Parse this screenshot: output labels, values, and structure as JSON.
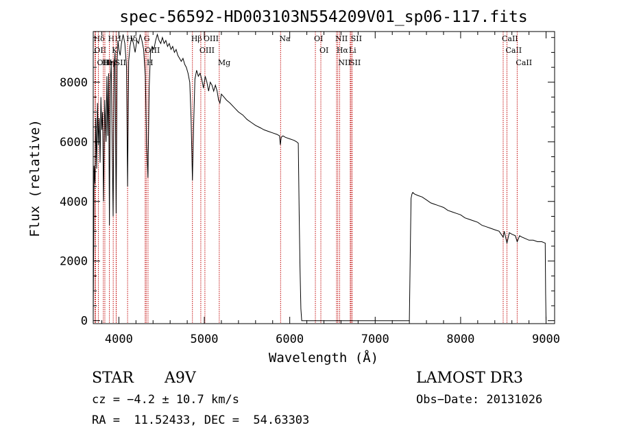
{
  "chart_data": {
    "type": "line",
    "title": "spec-56592-HD003103N554209V01_sp06-117.fits",
    "xlabel": "Wavelength (Å)",
    "ylabel": "Flux (relative)",
    "xlim": [
      3700,
      9100
    ],
    "ylim": [
      -100,
      9700
    ],
    "xticks": [
      4000,
      5000,
      6000,
      7000,
      8000,
      9000
    ],
    "yticks": [
      0,
      2000,
      4000,
      6000,
      8000
    ],
    "grid": false,
    "series": [
      {
        "name": "spectrum",
        "x": [
          3700,
          3705,
          3710,
          3720,
          3730,
          3740,
          3750,
          3760,
          3770,
          3780,
          3790,
          3800,
          3810,
          3820,
          3835,
          3850,
          3860,
          3870,
          3880,
          3889,
          3900,
          3910,
          3920,
          3933,
          3945,
          3955,
          3968,
          3980,
          3990,
          4000,
          4015,
          4030,
          4050,
          4070,
          4090,
          4102,
          4115,
          4130,
          4150,
          4170,
          4190,
          4210,
          4230,
          4250,
          4270,
          4290,
          4310,
          4325,
          4340,
          4355,
          4370,
          4390,
          4410,
          4430,
          4450,
          4470,
          4490,
          4510,
          4530,
          4550,
          4570,
          4590,
          4610,
          4630,
          4650,
          4670,
          4690,
          4710,
          4730,
          4750,
          4770,
          4790,
          4810,
          4830,
          4845,
          4861,
          4875,
          4890,
          4910,
          4930,
          4950,
          4970,
          4990,
          5010,
          5030,
          5050,
          5070,
          5090,
          5110,
          5130,
          5150,
          5167,
          5183,
          5200,
          5230,
          5260,
          5300,
          5350,
          5400,
          5450,
          5500,
          5550,
          5600,
          5650,
          5700,
          5750,
          5800,
          5850,
          5880,
          5890,
          5900,
          5920,
          5950,
          6000,
          6050,
          6080,
          6100,
          6110,
          6120,
          6130,
          6140,
          6200,
          6500,
          6800,
          7100,
          7400,
          7410,
          7420,
          7430,
          7440,
          7460,
          7500,
          7550,
          7600,
          7650,
          7700,
          7750,
          7800,
          7850,
          7900,
          7950,
          8000,
          8050,
          8100,
          8150,
          8200,
          8250,
          8300,
          8350,
          8400,
          8450,
          8498,
          8510,
          8542,
          8570,
          8600,
          8640,
          8662,
          8690,
          8720,
          8760,
          8800,
          8850,
          8900,
          8950,
          8990,
          8995,
          9000
        ],
        "y": [
          100,
          2400,
          5200,
          4600,
          6800,
          5100,
          7300,
          5900,
          6800,
          5300,
          7500,
          6400,
          7000,
          4000,
          7400,
          6000,
          8200,
          6200,
          8300,
          3200,
          8000,
          8600,
          6400,
          3500,
          8500,
          9000,
          3600,
          8700,
          9400,
          9100,
          8900,
          9300,
          9600,
          9300,
          8500,
          4500,
          8700,
          9200,
          9500,
          9300,
          9000,
          9400,
          9300,
          9600,
          9400,
          9100,
          8200,
          5900,
          4800,
          7800,
          9000,
          9200,
          9100,
          9400,
          9600,
          9400,
          9300,
          9500,
          9300,
          9400,
          9200,
          9300,
          9100,
          9200,
          9000,
          9100,
          8900,
          8800,
          8700,
          8800,
          8600,
          8500,
          8300,
          8000,
          6800,
          4700,
          6500,
          8100,
          8400,
          8200,
          8300,
          8100,
          7800,
          8200,
          8000,
          7700,
          8000,
          7900,
          7700,
          7900,
          7700,
          7400,
          7300,
          7600,
          7500,
          7400,
          7300,
          7150,
          7000,
          6900,
          6750,
          6650,
          6550,
          6480,
          6400,
          6350,
          6300,
          6250,
          6200,
          5900,
          6150,
          6200,
          6150,
          6100,
          6050,
          6000,
          5950,
          3600,
          1800,
          400,
          0,
          0,
          0,
          0,
          0,
          0,
          2200,
          4100,
          4250,
          4300,
          4250,
          4200,
          4150,
          4050,
          3950,
          3900,
          3850,
          3800,
          3700,
          3650,
          3600,
          3550,
          3450,
          3400,
          3350,
          3300,
          3200,
          3150,
          3100,
          3050,
          3000,
          2800,
          3000,
          2600,
          2950,
          2900,
          2850,
          2650,
          2850,
          2800,
          2750,
          2700,
          2700,
          2650,
          2650,
          2600,
          900,
          0
        ]
      }
    ],
    "annotations": [
      {
        "label": "Hδ",
        "x": 3720
      },
      {
        "label": "OII",
        "x": 3727
      },
      {
        "label": "OIII",
        "x": 3760
      },
      {
        "label": "HeI",
        "x": 3818
      },
      {
        "label": "Hη",
        "x": 3836
      },
      {
        "label": "H",
        "x": 3889
      },
      {
        "label": "K",
        "x": 3934
      },
      {
        "label": "SII",
        "x": 3970
      },
      {
        "label": "H",
        "x": 3968
      },
      {
        "label": "Hδ",
        "x": 4102
      },
      {
        "label": "OIII",
        "x": 4320
      },
      {
        "label": "H",
        "x": 4341
      },
      {
        "label": "G",
        "x": 4308
      },
      {
        "label": "Hβ",
        "x": 4861
      },
      {
        "label": "OIII",
        "x": 4959
      },
      {
        "label": "OIII",
        "x": 5007
      },
      {
        "label": "Mg",
        "x": 5175
      },
      {
        "label": "Na",
        "x": 5893
      },
      {
        "label": "OI",
        "x": 6300
      },
      {
        "label": "OI",
        "x": 6364
      },
      {
        "label": "Hα",
        "x": 6563
      },
      {
        "label": "NII",
        "x": 6548
      },
      {
        "label": "NII",
        "x": 6584
      },
      {
        "label": "SII",
        "x": 6717
      },
      {
        "label": "Li",
        "x": 6708
      },
      {
        "label": "SII",
        "x": 6731
      },
      {
        "label": "CaII",
        "x": 8498
      },
      {
        "label": "CaII",
        "x": 8542
      },
      {
        "label": "CaII",
        "x": 8662
      }
    ]
  },
  "info": {
    "object_type": "STAR",
    "subclass": "A9V",
    "survey": "LAMOST DR3",
    "redshift": "cz = −4.2 ± 10.7 km/s",
    "obs_date": "Obs−Date: 20131026",
    "coords": "RA =  11.52433, DEC =  54.63303"
  }
}
